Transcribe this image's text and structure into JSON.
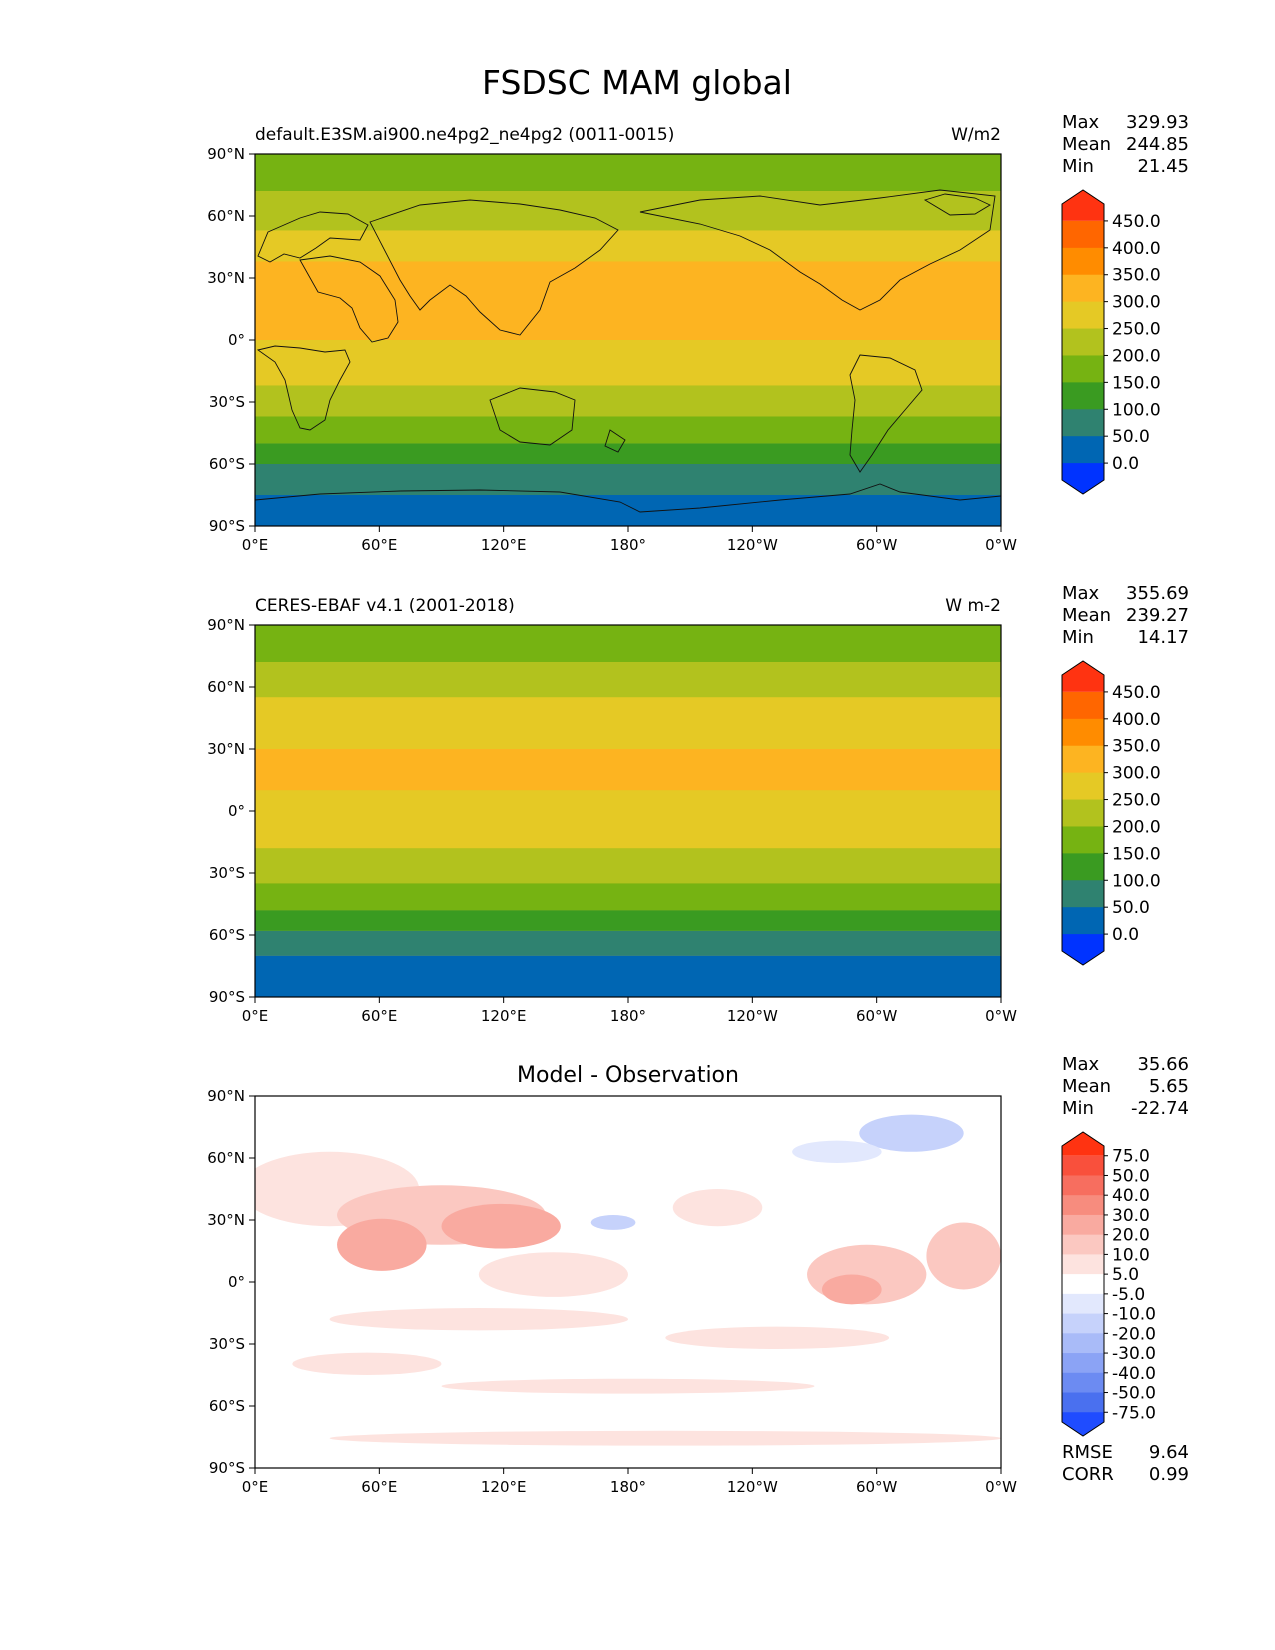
{
  "title": "FSDSC MAM global",
  "x_ticks": [
    "0°E",
    "60°E",
    "120°E",
    "180°",
    "120°W",
    "60°W",
    "0°W"
  ],
  "y_ticks": [
    "90°N",
    "60°N",
    "30°N",
    "0°",
    "30°S",
    "60°S",
    "90°S"
  ],
  "stat_labels": {
    "max": "Max",
    "mean": "Mean",
    "min": "Min"
  },
  "panels": [
    {
      "left_title": "default.E3SM.ai900.ne4pg2_ne4pg2 (0011-0015)",
      "center_title": "",
      "units": "W/m2",
      "stats": {
        "max": "329.93",
        "mean": "244.85",
        "min": "21.45"
      },
      "colorbar": {
        "labels": [
          "450.0",
          "400.0",
          "350.0",
          "300.0",
          "250.0",
          "200.0",
          "150.0",
          "100.0",
          "50.0",
          "0.0"
        ],
        "colors": [
          "#ff3311",
          "#ff6600",
          "#ff8c00",
          "#fdb421",
          "#e5c925",
          "#b2c21e",
          "#76b312",
          "#3a9b21",
          "#2f8270",
          "#0066b3",
          "#0033ff"
        ]
      },
      "bands": [
        {
          "lat_range": [
            90,
            72
          ],
          "color": "#76b312"
        },
        {
          "lat_range": [
            72,
            53
          ],
          "color": "#b2c21e"
        },
        {
          "lat_range": [
            53,
            38
          ],
          "color": "#e5c925"
        },
        {
          "lat_range": [
            38,
            0
          ],
          "color": "#fdb421"
        },
        {
          "lat_range": [
            0,
            -22
          ],
          "color": "#e5c925"
        },
        {
          "lat_range": [
            -22,
            -37
          ],
          "color": "#b2c21e"
        },
        {
          "lat_range": [
            -37,
            -50
          ],
          "color": "#76b312"
        },
        {
          "lat_range": [
            -50,
            -60
          ],
          "color": "#3a9b21"
        },
        {
          "lat_range": [
            -60,
            -75
          ],
          "color": "#2f8270"
        },
        {
          "lat_range": [
            -75,
            -90
          ],
          "color": "#0066b3"
        }
      ]
    },
    {
      "left_title": "CERES-EBAF v4.1 (2001-2018)",
      "center_title": "",
      "units": "W m-2",
      "stats": {
        "max": "355.69",
        "mean": "239.27",
        "min": "14.17"
      },
      "colorbar": {
        "labels": [
          "450.0",
          "400.0",
          "350.0",
          "300.0",
          "250.0",
          "200.0",
          "150.0",
          "100.0",
          "50.0",
          "0.0"
        ],
        "colors": [
          "#ff3311",
          "#ff6600",
          "#ff8c00",
          "#fdb421",
          "#e5c925",
          "#b2c21e",
          "#76b312",
          "#3a9b21",
          "#2f8270",
          "#0066b3",
          "#0033ff"
        ]
      },
      "bands": [
        {
          "lat_range": [
            90,
            72
          ],
          "color": "#76b312"
        },
        {
          "lat_range": [
            72,
            55
          ],
          "color": "#b2c21e"
        },
        {
          "lat_range": [
            55,
            30
          ],
          "color": "#e5c925"
        },
        {
          "lat_range": [
            30,
            10
          ],
          "color": "#fdb421"
        },
        {
          "lat_range": [
            10,
            -18
          ],
          "color": "#e5c925"
        },
        {
          "lat_range": [
            -18,
            -35
          ],
          "color": "#b2c21e"
        },
        {
          "lat_range": [
            -35,
            -48
          ],
          "color": "#76b312"
        },
        {
          "lat_range": [
            -48,
            -58
          ],
          "color": "#3a9b21"
        },
        {
          "lat_range": [
            -58,
            -70
          ],
          "color": "#2f8270"
        },
        {
          "lat_range": [
            -70,
            -90
          ],
          "color": "#0066b3"
        }
      ]
    },
    {
      "left_title": "",
      "center_title": "Model - Observation",
      "units": "",
      "stats": {
        "max": "35.66",
        "mean": "5.65",
        "min": "-22.74"
      },
      "colorbar": {
        "labels": [
          "75.0",
          "50.0",
          "40.0",
          "30.0",
          "20.0",
          "10.0",
          "5.0",
          "-5.0",
          "-10.0",
          "-20.0",
          "-30.0",
          "-40.0",
          "-50.0",
          "-75.0"
        ],
        "colors": [
          "#ff3311",
          "#f9503c",
          "#f76e5f",
          "#f78c7e",
          "#f9aaa0",
          "#fbc8c1",
          "#fde3df",
          "#ffffff",
          "#e2e8fd",
          "#c6d2fb",
          "#a9bbf8",
          "#8ba3f5",
          "#6c8bf2",
          "#4a70ef",
          "#1f4cff"
        ]
      },
      "bands": [],
      "rmse_label": "RMSE",
      "rmse": "9.64",
      "corr_label": "CORR",
      "corr": "0.99"
    }
  ]
}
